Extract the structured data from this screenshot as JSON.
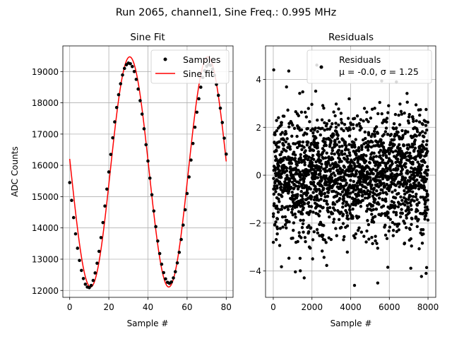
{
  "figure": {
    "suptitle": "Run 2065, channel1, Sine Freq.: 0.995 MHz"
  },
  "chart_data": [
    {
      "type": "line",
      "title": "Sine Fit",
      "xlabel": "Sample #",
      "ylabel": "ADC Counts",
      "xlim": [
        -3.5,
        83.5
      ],
      "ylim": [
        11780,
        19820
      ],
      "xticks": [
        0,
        20,
        40,
        60,
        80
      ],
      "yticks": [
        12000,
        13000,
        14000,
        15000,
        16000,
        17000,
        18000,
        19000
      ],
      "grid": true,
      "legend_loc": "top-right",
      "legend": [
        "Samples",
        "Sine fit"
      ],
      "fit": {
        "amplitude": 3680,
        "offset": 15790,
        "period": 39.93,
        "phase_deg": -6.5
      },
      "sample_range": [
        0,
        80
      ],
      "series": [
        {
          "name": "Samples",
          "style": "markers",
          "color": "#000000",
          "values": [
            15450,
            14880,
            14330,
            13810,
            13350,
            12960,
            12640,
            12380,
            12200,
            12110,
            12090,
            12160,
            12320,
            12560,
            12870,
            13250,
            13690,
            14170,
            14700,
            15240,
            15790,
            16350,
            16880,
            17390,
            17850,
            18260,
            18610,
            18890,
            19100,
            19220,
            19270,
            19250,
            19160,
            19000,
            18750,
            18440,
            18070,
            17640,
            17170,
            16660,
            16140,
            15590,
            15060,
            14540,
            14040,
            13580,
            13180,
            12840,
            12570,
            12370,
            12260,
            12230,
            12270,
            12400,
            12600,
            12880,
            13220,
            13630,
            14090,
            14580,
            15100,
            15630,
            16170,
            16700,
            17220,
            17700,
            18130,
            18500,
            18810,
            19030,
            19170,
            19230,
            19200,
            19080,
            18880,
            18590,
            18240,
            17830,
            17370,
            16870,
            16360
          ]
        },
        {
          "name": "Sine fit",
          "style": "line",
          "color": "#ff0000"
        }
      ]
    },
    {
      "type": "scatter",
      "title": "Residuals",
      "xlabel": "Sample #",
      "xlim": [
        -400,
        8400
      ],
      "ylim": [
        -5.1,
        5.4
      ],
      "xticks": [
        0,
        2000,
        4000,
        6000,
        8000
      ],
      "yticks": [
        -4,
        -2,
        0,
        2,
        4
      ],
      "grid": true,
      "legend_loc": "top-right",
      "legend_label": "Residuals",
      "legend_stats": "μ = -0.0, σ = 1.25",
      "stats": {
        "mean": -0.0,
        "sigma": 1.25,
        "n_samples": 8000
      },
      "notable_points": [
        {
          "x": 2250,
          "y": 4.6
        },
        {
          "x": 4200,
          "y": -4.6
        },
        {
          "x": 5400,
          "y": -4.5
        },
        {
          "x": 800,
          "y": 4.35
        },
        {
          "x": 7900,
          "y": -4.1
        }
      ]
    }
  ]
}
